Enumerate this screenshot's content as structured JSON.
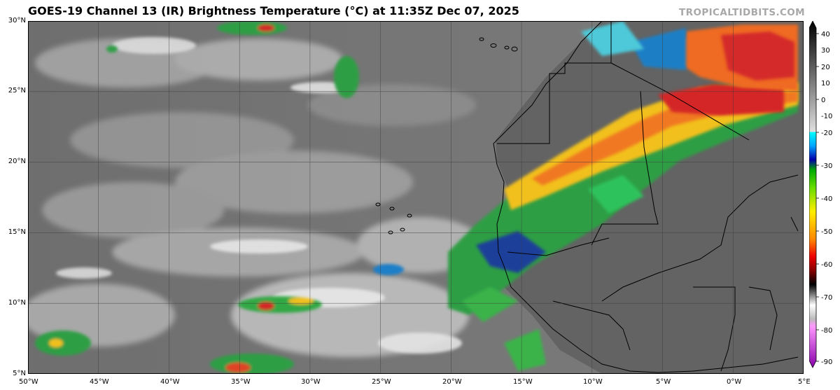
{
  "title": "GOES-19 Channel 13 (IR) Brightness Temperature (°C) at 11:35Z Dec 07, 2025",
  "site": "TROPICALTIDBITS.COM",
  "map": {
    "lat_labels": [
      "30°N",
      "25°N",
      "20°N",
      "15°N",
      "10°N",
      "5°N"
    ],
    "lon_labels": [
      "50°W",
      "45°W",
      "40°W",
      "35°W",
      "30°W",
      "25°W",
      "20°W",
      "15°W",
      "10°W",
      "5°W",
      "0°W",
      "5°E"
    ]
  },
  "colorbar": {
    "labels": [
      "40",
      "30",
      "20",
      "10",
      "0",
      "-10",
      "-20",
      "-30",
      "-40",
      "-50",
      "-60",
      "-70",
      "-80",
      "-90"
    ],
    "unit": "°C"
  }
}
